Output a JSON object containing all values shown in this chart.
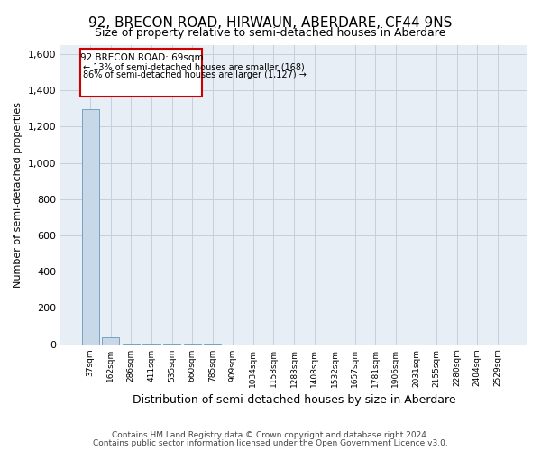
{
  "title": "92, BRECON ROAD, HIRWAUN, ABERDARE, CF44 9NS",
  "subtitle": "Size of property relative to semi-detached houses in Aberdare",
  "xlabel": "Distribution of semi-detached houses by size in Aberdare",
  "ylabel": "Number of semi-detached properties",
  "footer_line1": "Contains HM Land Registry data © Crown copyright and database right 2024.",
  "footer_line2": "Contains public sector information licensed under the Open Government Licence v3.0.",
  "annotation_title": "92 BRECON ROAD: 69sqm",
  "annotation_line1": "← 13% of semi-detached houses are smaller (168)",
  "annotation_line2": "86% of semi-detached houses are larger (1,127) →",
  "bin_labels": [
    "37sqm",
    "162sqm",
    "286sqm",
    "411sqm",
    "535sqm",
    "660sqm",
    "785sqm",
    "909sqm",
    "1034sqm",
    "1158sqm",
    "1283sqm",
    "1408sqm",
    "1532sqm",
    "1657sqm",
    "1781sqm",
    "1906sqm",
    "2031sqm",
    "2155sqm",
    "2280sqm",
    "2404sqm",
    "2529sqm"
  ],
  "bar_values": [
    1295,
    40,
    3,
    2,
    2,
    1,
    1,
    0,
    0,
    0,
    0,
    0,
    0,
    0,
    0,
    0,
    0,
    0,
    0,
    0,
    0
  ],
  "bar_color": "#c8d8e8",
  "bar_edge_color": "#6699bb",
  "annotation_box_color": "#cc0000",
  "annotation_text_color": "#000000",
  "grid_color": "#c5d0dc",
  "bg_color": "#e8eef5",
  "ylim": [
    0,
    1650
  ],
  "yticks": [
    0,
    200,
    400,
    600,
    800,
    1000,
    1200,
    1400,
    1600
  ]
}
